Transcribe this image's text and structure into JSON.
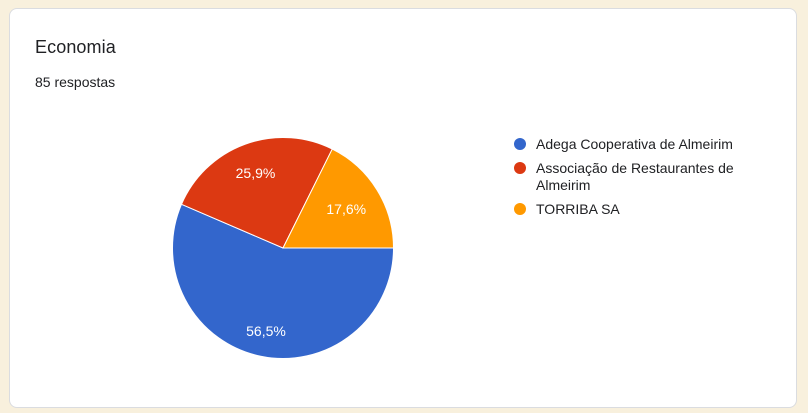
{
  "page": {
    "background_color": "#f8f0dd",
    "card_background": "#ffffff",
    "card_border_color": "#dadce0"
  },
  "header": {
    "title": "Economia",
    "subtitle": "85 respostas"
  },
  "chart_data": {
    "type": "pie",
    "title": "Economia",
    "responses_label": "85 respostas",
    "total_responses": 85,
    "start_angle_deg": 0,
    "direction": "clockwise",
    "legend_position": "right",
    "label_text_color": "#ffffff",
    "slices": [
      {
        "label": "Adega Cooperativa de Almeirim",
        "value": 48,
        "pct_label": "56,5%",
        "color": "#3366cc"
      },
      {
        "label": "Associação de Restaurantes de Almeirim",
        "value": 22,
        "pct_label": "25,9%",
        "color": "#dc3912"
      },
      {
        "label": "TORRIBA SA",
        "value": 15,
        "pct_label": "17,6%",
        "color": "#ff9900"
      }
    ]
  }
}
